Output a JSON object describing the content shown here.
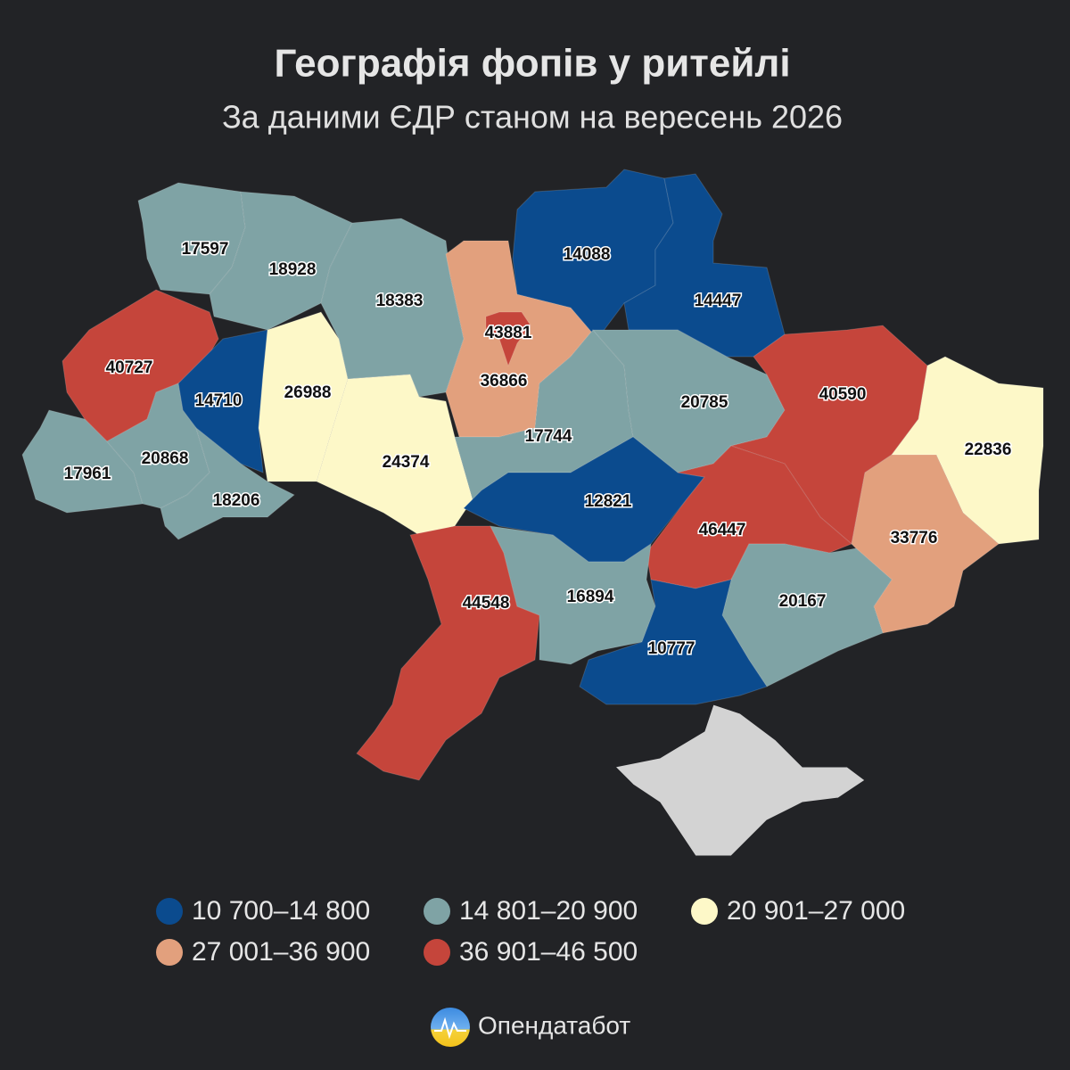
{
  "title": "Географія фопів у ритейлі",
  "subtitle": "За даними ЄДР станом на вересень 2026",
  "regions": [
    {
      "value": 17597,
      "color": "#7fa3a5"
    },
    {
      "value": 18928,
      "color": "#7fa3a5"
    },
    {
      "value": 18383,
      "color": "#7fa3a5"
    },
    {
      "value": 36866,
      "color": "#e2a07d"
    },
    {
      "value": 43881,
      "color": "#c5453b"
    },
    {
      "value": 14088,
      "color": "#0b4b8e"
    },
    {
      "value": 14447,
      "color": "#0b4b8e"
    },
    {
      "value": 40727,
      "color": "#c5453b"
    },
    {
      "value": 14710,
      "color": "#0b4b8e"
    },
    {
      "value": 26988,
      "color": "#fdf8c8"
    },
    {
      "value": 24374,
      "color": "#fdf8c8"
    },
    {
      "value": 17961,
      "color": "#7fa3a5"
    },
    {
      "value": 20868,
      "color": "#7fa3a5"
    },
    {
      "value": 18206,
      "color": "#7fa3a5"
    },
    {
      "value": 17744,
      "color": "#7fa3a5"
    },
    {
      "value": 20785,
      "color": "#7fa3a5"
    },
    {
      "value": 40590,
      "color": "#c5453b"
    },
    {
      "value": 22836,
      "color": "#fdf8c8"
    },
    {
      "value": 12821,
      "color": "#0b4b8e"
    },
    {
      "value": 46447,
      "color": "#c5453b"
    },
    {
      "value": 33776,
      "color": "#e2a07d"
    },
    {
      "value": 44548,
      "color": "#c5453b"
    },
    {
      "value": 16894,
      "color": "#7fa3a5"
    },
    {
      "value": 20167,
      "color": "#7fa3a5"
    },
    {
      "value": 10777,
      "color": "#0b4b8e"
    }
  ],
  "crimea": {
    "color": "#d3d3d3"
  },
  "legend": [
    {
      "label": "10 700–14 800",
      "color": "#0b4b8e"
    },
    {
      "label": "14 801–20 900",
      "color": "#7fa3a5"
    },
    {
      "label": "20 901–27 000",
      "color": "#fdf8c8"
    },
    {
      "label": "27 001–36 900",
      "color": "#e2a07d"
    },
    {
      "label": "36 901–46 500",
      "color": "#c5453b"
    }
  ],
  "footer": "Опендатабот"
}
